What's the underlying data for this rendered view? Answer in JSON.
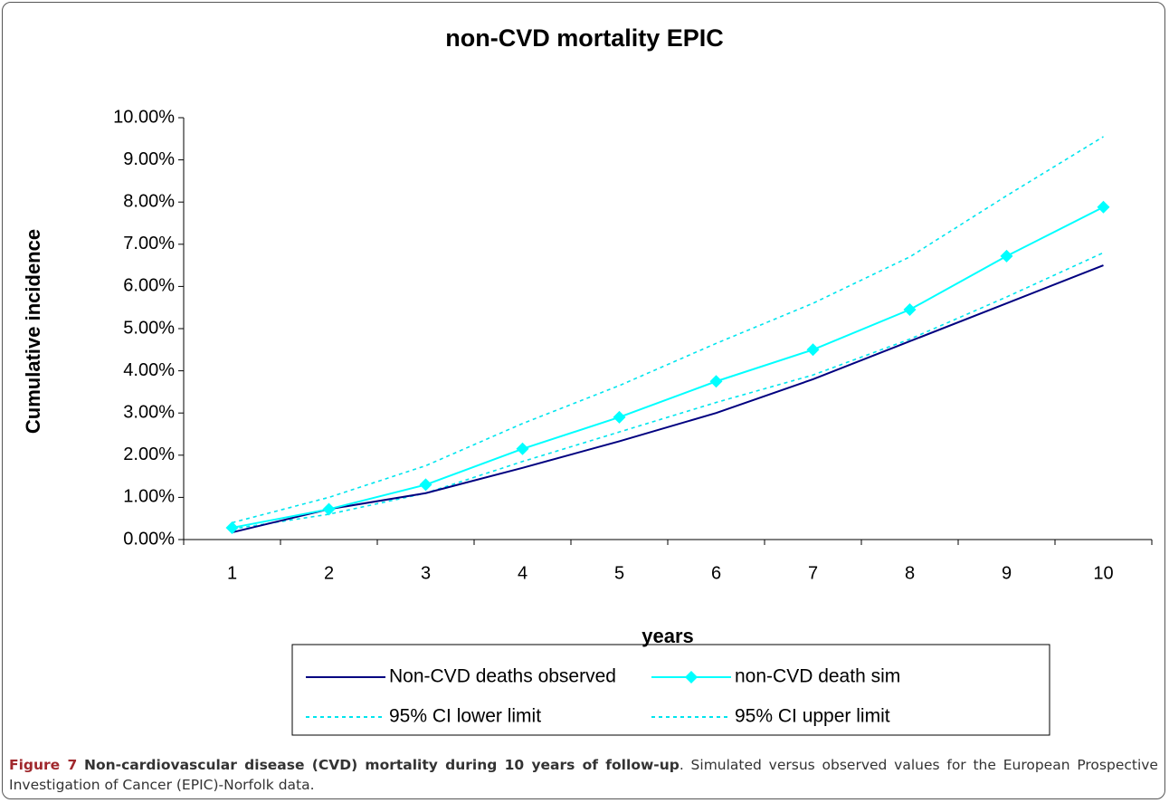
{
  "chart_data": {
    "type": "line",
    "title": "non-CVD mortality EPIC",
    "x_label": "years",
    "y_label": "Cumulative incidence",
    "categories": [
      "1",
      "2",
      "3",
      "4",
      "5",
      "6",
      "7",
      "8",
      "9",
      "10"
    ],
    "series": [
      {
        "name": "Non-CVD deaths observed",
        "color": "#000080",
        "style": "solid",
        "values": [
          0.17,
          0.72,
          1.1,
          1.7,
          2.33,
          3.0,
          3.8,
          4.7,
          5.6,
          6.5
        ]
      },
      {
        "name": "non-CVD death sim",
        "color": "#00ffff",
        "style": "solid",
        "marker": "diamond",
        "values": [
          0.28,
          0.72,
          1.3,
          2.15,
          2.9,
          3.75,
          4.5,
          5.45,
          6.72,
          7.88
        ]
      },
      {
        "name": "95% CI lower limit",
        "color": "#00e5ee",
        "style": "dotted",
        "values": [
          0.25,
          0.6,
          1.1,
          1.85,
          2.55,
          3.25,
          3.9,
          4.75,
          5.75,
          6.8
        ]
      },
      {
        "name": "95% CI upper limit",
        "color": "#00e5ee",
        "style": "dotted",
        "values": [
          0.4,
          1.0,
          1.75,
          2.75,
          3.65,
          4.65,
          5.6,
          6.7,
          8.15,
          9.55
        ]
      }
    ],
    "ylim": [
      0,
      10
    ],
    "yticks": [
      {
        "value": 0,
        "label": "0.00%"
      },
      {
        "value": 1,
        "label": "1.00%"
      },
      {
        "value": 2,
        "label": "2.00%"
      },
      {
        "value": 3,
        "label": "3.00%"
      },
      {
        "value": 4,
        "label": "4.00%"
      },
      {
        "value": 5,
        "label": "5.00%"
      },
      {
        "value": 6,
        "label": "6.00%"
      },
      {
        "value": 7,
        "label": "7.00%"
      },
      {
        "value": 8,
        "label": "8.00%"
      },
      {
        "value": 9,
        "label": "9.00%"
      },
      {
        "value": 10,
        "label": "10.00%"
      }
    ],
    "grid": false,
    "legend": "bottom"
  },
  "caption": {
    "label": "Figure 7",
    "title": "Non-cardiovascular disease (CVD) mortality during 10 years of follow-up",
    "text": ". Simulated versus observed values for the European Prospective Investigation of Cancer (EPIC)-Norfolk data."
  }
}
